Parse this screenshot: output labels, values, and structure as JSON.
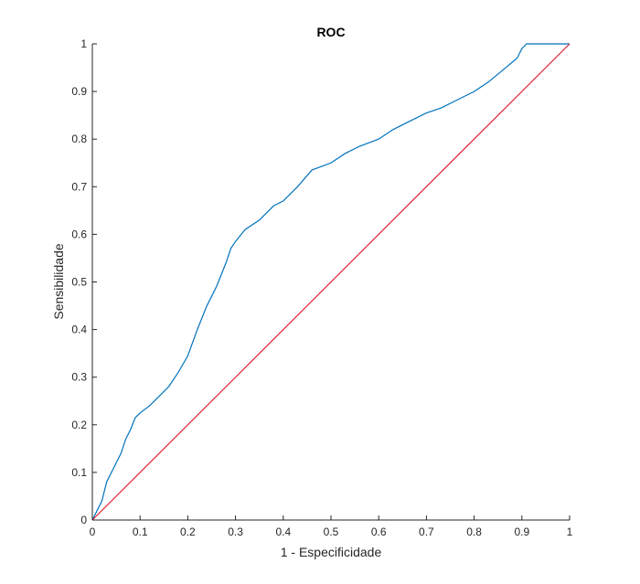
{
  "chart_data": {
    "type": "line",
    "title": "ROC",
    "xlabel": "1 - Especificidade",
    "ylabel": "Sensibilidade",
    "xlim": [
      0,
      1
    ],
    "ylim": [
      0,
      1
    ],
    "xticks": [
      0,
      0.1,
      0.2,
      0.3,
      0.4,
      0.5,
      0.6,
      0.7,
      0.8,
      0.9,
      1
    ],
    "yticks": [
      0,
      0.1,
      0.2,
      0.3,
      0.4,
      0.5,
      0.6,
      0.7,
      0.8,
      0.9,
      1
    ],
    "xtick_labels": [
      "0",
      "0.1",
      "0.2",
      "0.3",
      "0.4",
      "0.5",
      "0.6",
      "0.7",
      "0.8",
      "0.9",
      "1"
    ],
    "ytick_labels": [
      "0",
      "0.1",
      "0.2",
      "0.3",
      "0.4",
      "0.5",
      "0.6",
      "0.7",
      "0.8",
      "0.9",
      "1"
    ],
    "grid": false,
    "series": [
      {
        "color": "#0072BD",
        "x": [
          0,
          0.01,
          0.02,
          0.03,
          0.04,
          0.05,
          0.06,
          0.07,
          0.08,
          0.09,
          0.1,
          0.12,
          0.14,
          0.16,
          0.18,
          0.2,
          0.22,
          0.24,
          0.26,
          0.28,
          0.29,
          0.3,
          0.32,
          0.35,
          0.38,
          0.4,
          0.43,
          0.46,
          0.5,
          0.53,
          0.56,
          0.6,
          0.63,
          0.66,
          0.7,
          0.73,
          0.76,
          0.8,
          0.83,
          0.86,
          0.89,
          0.9,
          0.91,
          0.95,
          1
        ],
        "y": [
          0,
          0.02,
          0.04,
          0.08,
          0.1,
          0.12,
          0.14,
          0.17,
          0.19,
          0.215,
          0.225,
          0.24,
          0.26,
          0.28,
          0.31,
          0.345,
          0.4,
          0.45,
          0.49,
          0.54,
          0.57,
          0.585,
          0.61,
          0.63,
          0.66,
          0.67,
          0.7,
          0.735,
          0.75,
          0.77,
          0.785,
          0.8,
          0.82,
          0.835,
          0.855,
          0.865,
          0.88,
          0.9,
          0.92,
          0.945,
          0.97,
          0.99,
          1,
          1,
          1
        ]
      },
      {
        "color": "#E01E2E",
        "x": [
          0,
          1
        ],
        "y": [
          0,
          1
        ]
      }
    ]
  }
}
